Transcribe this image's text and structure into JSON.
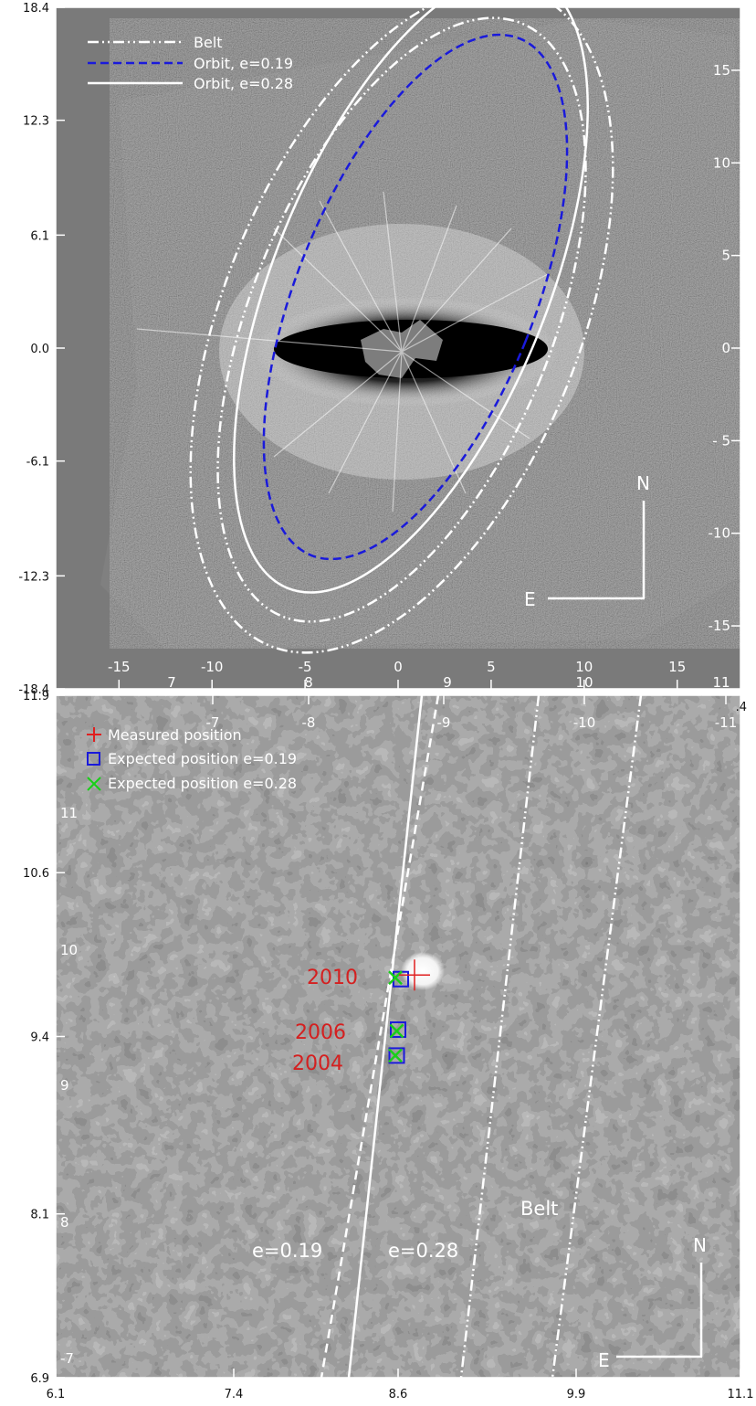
{
  "chart_data": [
    {
      "type": "scatter",
      "panel": "top",
      "title": "",
      "xlabel": "",
      "ylabel": "",
      "xlim": [
        -18.4,
        18.4
      ],
      "ylim": [
        -18.4,
        18.4
      ],
      "left_ticks": [
        "18.4",
        "12.3",
        "6.1",
        "0.0",
        "-6.1",
        "-12.3",
        "-18.4"
      ],
      "right_ticks": [
        "15",
        "10",
        "5",
        "0",
        "- 5",
        "-10",
        "-15"
      ],
      "bottom_inner_ticks": [
        "-15",
        "-10",
        "-5",
        "0",
        "5",
        "10",
        "15"
      ],
      "legend": [
        {
          "label": "Belt",
          "style": "dash-dot-dot",
          "color": "#ffffff"
        },
        {
          "label": "Orbit, e=0.19",
          "style": "dashed",
          "color": "#1a1adb"
        },
        {
          "label": "Orbit, e=0.28",
          "style": "solid",
          "color": "#ffffff"
        }
      ],
      "compass": {
        "north": "N",
        "east": "E"
      },
      "background": "gray-scale residual image with central saturated halo"
    },
    {
      "type": "scatter",
      "panel": "bottom",
      "title": "",
      "xlabel": "",
      "ylabel": "",
      "xlim": [
        6.1,
        11.1
      ],
      "ylim": [
        6.9,
        11.9
      ],
      "bottom_ticks": [
        "6.1",
        "7.4",
        "8.6",
        "9.9",
        "11.1"
      ],
      "left_ticks": [
        "11.9",
        "10.6",
        "9.4",
        "8.1",
        "6.9"
      ],
      "left_inner_ticks": [
        "11",
        "10",
        "9",
        "8",
        "-7"
      ],
      "top_outer_ticks": [
        "7",
        "8",
        "9",
        "10",
        "11"
      ],
      "top_inner_ticks": [
        "-7",
        "-8",
        "-9",
        "-10",
        "-11"
      ],
      "top_right_fragment": ".4",
      "legend": [
        {
          "label": "Measured position",
          "marker": "plus",
          "color": "#e02020"
        },
        {
          "label": "Expected position e=0.19",
          "marker": "square",
          "color": "#1a1adb"
        },
        {
          "label": "Expected position e=0.28",
          "marker": "x",
          "color": "#18d018"
        }
      ],
      "epochs": [
        {
          "year": "2010",
          "measured": [
            8.72,
            9.85
          ],
          "expected_e019": [
            8.62,
            9.82
          ],
          "expected_e028": [
            8.58,
            9.83
          ]
        },
        {
          "year": "2006",
          "expected_e019": [
            8.6,
            9.45
          ],
          "expected_e028": [
            8.59,
            9.44
          ]
        },
        {
          "year": "2004",
          "expected_e019": [
            8.59,
            9.26
          ],
          "expected_e028": [
            8.58,
            9.26
          ]
        }
      ],
      "annotations": [
        "e=0.19",
        "e=0.28",
        "Belt"
      ],
      "compass": {
        "north": "N",
        "east": "E"
      }
    }
  ]
}
